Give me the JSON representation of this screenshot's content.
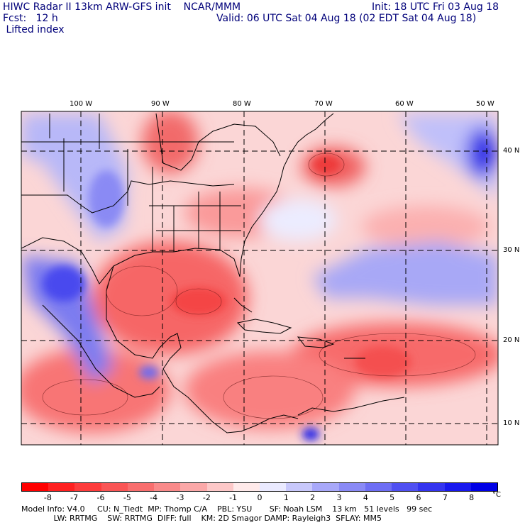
{
  "header": {
    "line1_left": "HIWC Radar II 13km ARW-GFS init    NCAR/MMM",
    "line1_right": "Init: 18 UTC Fri 03 Aug 18",
    "line2_left": "Fcst:   12 h",
    "line2_right": "Valid: 06 UTC Sat 04 Aug 18 (02 EDT Sat 04 Aug 18)",
    "line3": " Lifted index"
  },
  "map": {
    "lon_labels": [
      "100 W",
      "90 W",
      "80 W",
      "70 W",
      "60 W",
      "50 W"
    ],
    "lat_labels": [
      "40 N",
      "30 N",
      "20 N",
      "10 N"
    ]
  },
  "colorbar": {
    "labels": [
      "-8",
      "-7",
      "-6",
      "-5",
      "-4",
      "-3",
      "-2",
      "-1",
      "0",
      "1",
      "2",
      "3",
      "4",
      "5",
      "6",
      "7",
      "8"
    ],
    "unit": "°C",
    "colors": [
      "#ff0000",
      "#ff2020",
      "#fd3c3c",
      "#f95555",
      "#f86e6e",
      "#f98a8a",
      "#fba8a8",
      "#fdc8c8",
      "#ffeaea",
      "#eaeaff",
      "#c8c8fb",
      "#a8a8f9",
      "#8a8af6",
      "#6e6ef4",
      "#5050f2",
      "#3434f0",
      "#1818ee",
      "#0000e6"
    ]
  },
  "footer": {
    "line1": "Model Info: V4.0     CU: N_Tiedt  MP: Thomp C/A    PBL: YSU       SF: Noah LSM    13 km   51 levels   99 sec",
    "line2": "             LW: RRTMG    SW: RRTMG  DIFF: full    KM: 2D Smagor DAMP: Rayleigh3  SFLAY: MM5"
  }
}
